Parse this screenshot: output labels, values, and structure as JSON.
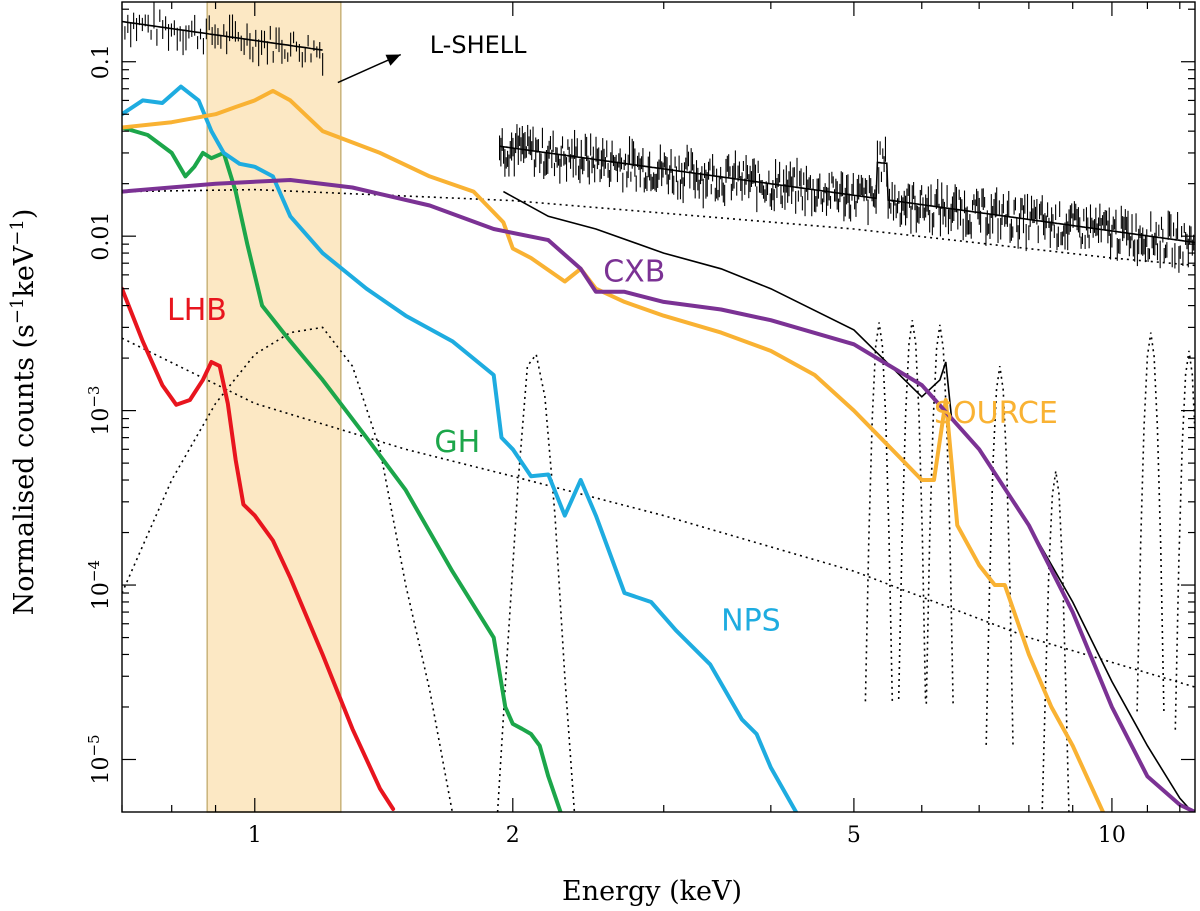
{
  "chart_data": {
    "type": "line",
    "title": "",
    "xlabel": "Energy (keV)",
    "ylabel_main": "Normalised counts (s",
    "ylabel_sup1": "−1",
    "ylabel_mid": "keV",
    "ylabel_sup2": "−1",
    "ylabel_end": ")",
    "xscale": "log",
    "yscale": "log",
    "xlim": [
      0.7,
      12.5
    ],
    "ylim": [
      5e-06,
      0.22
    ],
    "grid": false,
    "x_ticks": [
      {
        "value": 1,
        "label": "1"
      },
      {
        "value": 2,
        "label": "2"
      },
      {
        "value": 5,
        "label": "5"
      },
      {
        "value": 10,
        "label": "10"
      }
    ],
    "y_ticks": [
      {
        "value": 0.1,
        "label": "0.1",
        "base": "",
        "exp": ""
      },
      {
        "value": 0.01,
        "label": "0.01",
        "base": "",
        "exp": ""
      },
      {
        "value": 0.001,
        "label": "",
        "base": "10",
        "exp": "−3"
      },
      {
        "value": 0.0001,
        "label": "",
        "base": "10",
        "exp": "−4"
      },
      {
        "value": 1e-05,
        "label": "",
        "base": "10",
        "exp": "−5"
      }
    ],
    "highlight_band": {
      "x": [
        0.88,
        1.26
      ],
      "color": "#fce8c4",
      "edge": "#c9b27a"
    },
    "annotation": {
      "text": "L-SHELL",
      "from": [
        1.25,
        0.076
      ],
      "to": [
        1.48,
        0.11
      ],
      "text_x": 1.6,
      "text_y": 0.112
    },
    "series": [
      {
        "name": "LHB",
        "color": "#e8151e",
        "label_x": 0.79,
        "label_y": 0.0033,
        "x": [
          0.7,
          0.74,
          0.78,
          0.81,
          0.84,
          0.87,
          0.89,
          0.91,
          0.93,
          0.95,
          0.97,
          1.0,
          1.05,
          1.1,
          1.2,
          1.3,
          1.4,
          1.45
        ],
        "y": [
          0.005,
          0.0025,
          0.0014,
          0.00108,
          0.00115,
          0.0015,
          0.0019,
          0.0018,
          0.0011,
          0.00052,
          0.00029,
          0.00025,
          0.00018,
          0.00011,
          4e-05,
          1.5e-05,
          6.8e-06,
          5.2e-06
        ]
      },
      {
        "name": "GH",
        "color": "#1ca64a",
        "label_x": 1.62,
        "label_y": 0.00058,
        "x": [
          0.7,
          0.75,
          0.8,
          0.83,
          0.85,
          0.87,
          0.89,
          0.92,
          0.95,
          0.98,
          1.02,
          1.1,
          1.2,
          1.35,
          1.5,
          1.7,
          1.9,
          1.96,
          2.0,
          2.05,
          2.1,
          2.15,
          2.2,
          2.28
        ],
        "y": [
          0.042,
          0.038,
          0.03,
          0.022,
          0.025,
          0.03,
          0.028,
          0.03,
          0.018,
          0.009,
          0.004,
          0.0025,
          0.0015,
          0.0007,
          0.00035,
          0.00012,
          5e-05,
          2e-05,
          1.6e-05,
          1.5e-05,
          1.4e-05,
          1.2e-05,
          8e-06,
          4.8e-06
        ]
      },
      {
        "name": "NPS",
        "color": "#1eace0",
        "label_x": 3.5,
        "label_y": 5.5e-05,
        "x": [
          0.7,
          0.74,
          0.78,
          0.82,
          0.86,
          0.89,
          0.92,
          0.96,
          1.0,
          1.05,
          1.1,
          1.2,
          1.35,
          1.5,
          1.7,
          1.9,
          1.94,
          2.0,
          2.1,
          2.2,
          2.3,
          2.4,
          2.5,
          2.7,
          2.9,
          3.1,
          3.4,
          3.7,
          3.85,
          4.0,
          4.3
        ],
        "y": [
          0.05,
          0.06,
          0.058,
          0.072,
          0.06,
          0.04,
          0.03,
          0.026,
          0.025,
          0.022,
          0.013,
          0.008,
          0.005,
          0.0035,
          0.0025,
          0.0016,
          0.0007,
          0.0006,
          0.00042,
          0.00043,
          0.00025,
          0.0004,
          0.00025,
          9e-05,
          8e-05,
          5.5e-05,
          3.5e-05,
          1.7e-05,
          1.4e-05,
          9e-06,
          4.8e-06
        ]
      },
      {
        "name": "SOURCE",
        "color": "#f9b233",
        "label_x": 6.2,
        "label_y": 0.00085,
        "x": [
          0.7,
          0.8,
          0.9,
          0.95,
          1.0,
          1.05,
          1.1,
          1.2,
          1.4,
          1.6,
          1.8,
          1.95,
          2.0,
          2.1,
          2.3,
          2.4,
          2.5,
          2.7,
          3.0,
          3.5,
          4.0,
          4.5,
          5.0,
          5.5,
          6.0,
          6.2,
          6.4,
          6.6,
          7.0,
          7.3,
          7.5,
          8.0,
          8.5,
          9.0,
          9.8
        ],
        "y": [
          0.042,
          0.045,
          0.05,
          0.055,
          0.06,
          0.068,
          0.06,
          0.04,
          0.03,
          0.022,
          0.018,
          0.012,
          0.0085,
          0.0075,
          0.0055,
          0.0065,
          0.005,
          0.0042,
          0.0035,
          0.0028,
          0.0022,
          0.0016,
          0.001,
          0.00062,
          0.0004,
          0.0004,
          0.00115,
          0.00022,
          0.00013,
          0.0001,
          0.0001,
          4e-05,
          2e-05,
          1.2e-05,
          4.8e-06
        ]
      },
      {
        "name": "CXB",
        "color": "#7b3294",
        "label_x": 2.55,
        "label_y": 0.0055,
        "x": [
          0.7,
          0.9,
          1.1,
          1.3,
          1.6,
          1.9,
          2.2,
          2.4,
          2.5,
          2.7,
          3.0,
          3.5,
          4.0,
          5.0,
          6.0,
          7.0,
          8.0,
          9.0,
          10.0,
          11.0,
          12.0,
          12.5
        ],
        "y": [
          0.018,
          0.02,
          0.021,
          0.019,
          0.015,
          0.011,
          0.0095,
          0.0065,
          0.0048,
          0.0048,
          0.0042,
          0.0038,
          0.0033,
          0.0024,
          0.0014,
          0.0006,
          0.00022,
          7e-05,
          2e-05,
          8e-06,
          5.5e-06,
          5e-06
        ]
      }
    ]
  }
}
